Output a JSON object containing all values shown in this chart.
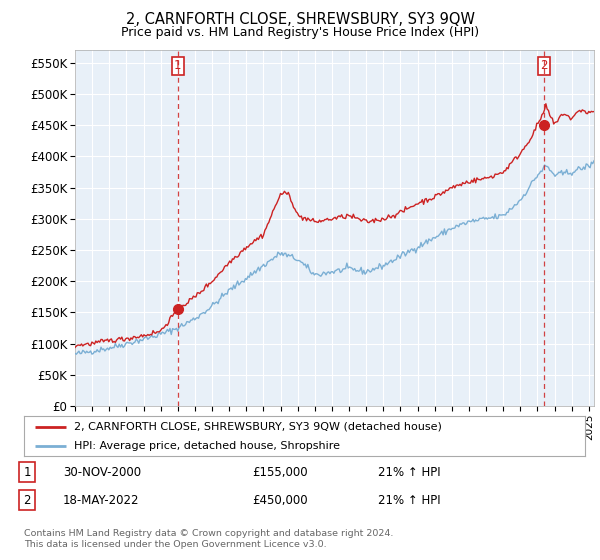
{
  "title": "2, CARNFORTH CLOSE, SHREWSBURY, SY3 9QW",
  "subtitle": "Price paid vs. HM Land Registry's House Price Index (HPI)",
  "ylabel_ticks": [
    "£0",
    "£50K",
    "£100K",
    "£150K",
    "£200K",
    "£250K",
    "£300K",
    "£350K",
    "£400K",
    "£450K",
    "£500K",
    "£550K"
  ],
  "ytick_values": [
    0,
    50000,
    100000,
    150000,
    200000,
    250000,
    300000,
    350000,
    400000,
    450000,
    500000,
    550000
  ],
  "ylim": [
    0,
    570000
  ],
  "xlim_start": 1995.0,
  "xlim_end": 2025.3,
  "hpi_color": "#7bafd4",
  "price_color": "#cc2222",
  "sale1_year": 2001.0,
  "sale1_price": 155000,
  "sale2_year": 2022.38,
  "sale2_price": 450000,
  "sale1_label": "1",
  "sale2_label": "2",
  "legend_line1": "2, CARNFORTH CLOSE, SHREWSBURY, SY3 9QW (detached house)",
  "legend_line2": "HPI: Average price, detached house, Shropshire",
  "table_row1": [
    "1",
    "30-NOV-2000",
    "£155,000",
    "21% ↑ HPI"
  ],
  "table_row2": [
    "2",
    "18-MAY-2022",
    "£450,000",
    "21% ↑ HPI"
  ],
  "footnote": "Contains HM Land Registry data © Crown copyright and database right 2024.\nThis data is licensed under the Open Government Licence v3.0.",
  "background_color": "#ffffff",
  "plot_bg_color": "#e8f0f8",
  "grid_color": "#ffffff",
  "vline_color": "#cc2222"
}
